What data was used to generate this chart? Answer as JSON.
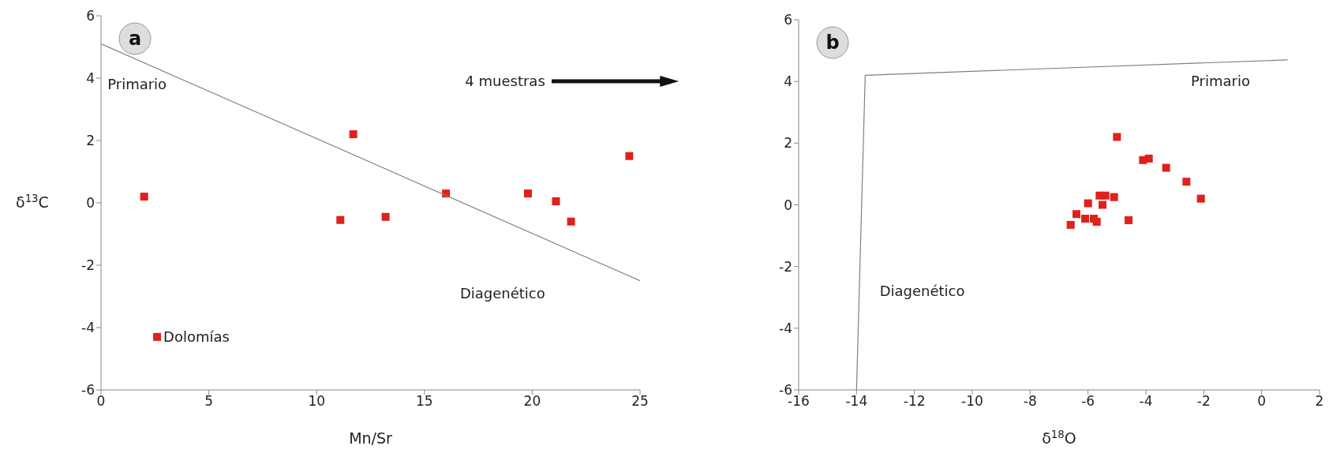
{
  "chart_data": [
    {
      "type": "scatter",
      "title": "a",
      "xlabel": "Mn/Sr",
      "ylabel": "δ$^{13}$C",
      "marker": "square",
      "grid": false,
      "legend": false,
      "xlim": [
        0,
        25
      ],
      "xticks": [
        0,
        5,
        10,
        15,
        20,
        25
      ],
      "ylim": [
        -6,
        6
      ],
      "yticks": [
        -6,
        -4,
        -2,
        0,
        2,
        4,
        6
      ],
      "series": [
        {
          "color": "#e0201b",
          "x": [
            2,
            2.6,
            11.1,
            11.7,
            13.2,
            16,
            19.8,
            21.1,
            21.8,
            24.5
          ],
          "values": [
            0.2,
            -4.3,
            -0.55,
            2.2,
            -0.45,
            0.3,
            0.3,
            0.05,
            -0.6,
            1.5
          ]
        },
        {
          "type": "line",
          "color": "#808080",
          "x": [
            0,
            25
          ],
          "values": [
            5.1,
            -2.5
          ],
          "marker": "none"
        }
      ],
      "annotations": [
        "Primario",
        "4 muestras",
        "Diagenético",
        {
          "text": "Dolomías",
          "x": 2.6,
          "y": -4.3
        }
      ]
    },
    {
      "type": "scatter",
      "title": "b",
      "xlabel": "δ$^{18}$O",
      "marker": "square",
      "grid": false,
      "legend": false,
      "xlim": [
        -16,
        2
      ],
      "xticks": [
        -16,
        -14,
        -12,
        -10,
        -8,
        -6,
        -4,
        -2,
        0,
        2
      ],
      "ylim": [
        -6,
        6
      ],
      "yticks": [
        -6,
        -4,
        -2,
        0,
        2,
        4,
        6
      ],
      "series": [
        {
          "color": "#e0201b",
          "x": [
            -5,
            -4.1,
            -3.9,
            -3.3,
            -2.6,
            -2.1,
            -6.6,
            -6.4,
            -6.1,
            -6.0,
            -5.8,
            -5.7,
            -5.6,
            -5.4,
            -5.5,
            -5.1,
            -4.6
          ],
          "values": [
            2.2,
            1.45,
            1.5,
            1.2,
            0.75,
            0.2,
            -0.65,
            -0.3,
            -0.45,
            0.05,
            -0.45,
            -0.55,
            0.3,
            0.3,
            0,
            0.25,
            -0.5
          ]
        },
        {
          "type": "line",
          "color": "#808080",
          "x": [
            -14,
            -13.7,
            0.9
          ],
          "values": [
            -6,
            4.2,
            4.7
          ],
          "marker": "none"
        }
      ],
      "annotations": [
        "Primario",
        "Diagenético"
      ]
    }
  ]
}
